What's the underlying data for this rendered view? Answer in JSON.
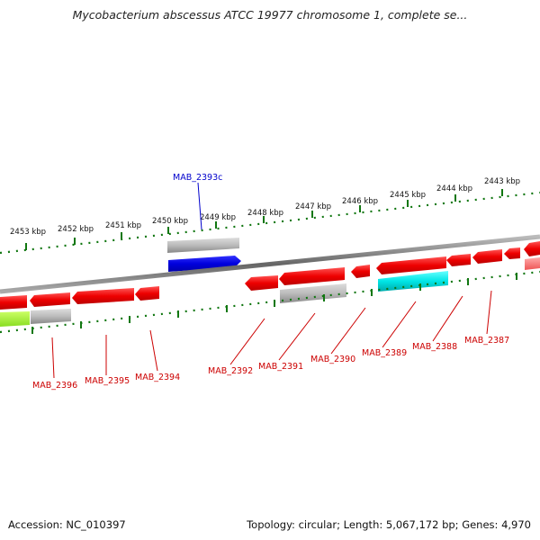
{
  "title": "Mycobacterium abscessus ATCC 19977 chromosome 1, complete se...",
  "footer": {
    "accession": "Accession: NC_010397",
    "summary": "Topology: circular; Length: 5,067,172 bp; Genes: 4,970"
  },
  "kbp_ticks": [
    "2453 kbp",
    "2452 kbp",
    "2451 kbp",
    "2450 kbp",
    "2449 kbp",
    "2448 kbp",
    "2447 kbp",
    "2446 kbp",
    "2445 kbp",
    "2444 kbp",
    "2443 kbp"
  ],
  "gene_labels": {
    "mab_2393c": "MAB_2393c",
    "mab_2396": "MAB_2396",
    "mab_2395": "MAB_2395",
    "mab_2394": "MAB_2394",
    "mab_2392": "MAB_2392",
    "mab_2391": "MAB_2391",
    "mab_2390": "MAB_2390",
    "mab_2389": "MAB_2389",
    "mab_2388": "MAB_2388",
    "mab_2387": "MAB_2387"
  },
  "colors": {
    "gene": "#ee0000",
    "gene_light": "#ff6666",
    "pseudo": "#999999",
    "forward_gene": "#0000dd",
    "rna": "#00dddd",
    "misc": "#99ee33",
    "ticks": "#117711",
    "label_red": "#cc0000",
    "label_blue": "#0000cc"
  }
}
